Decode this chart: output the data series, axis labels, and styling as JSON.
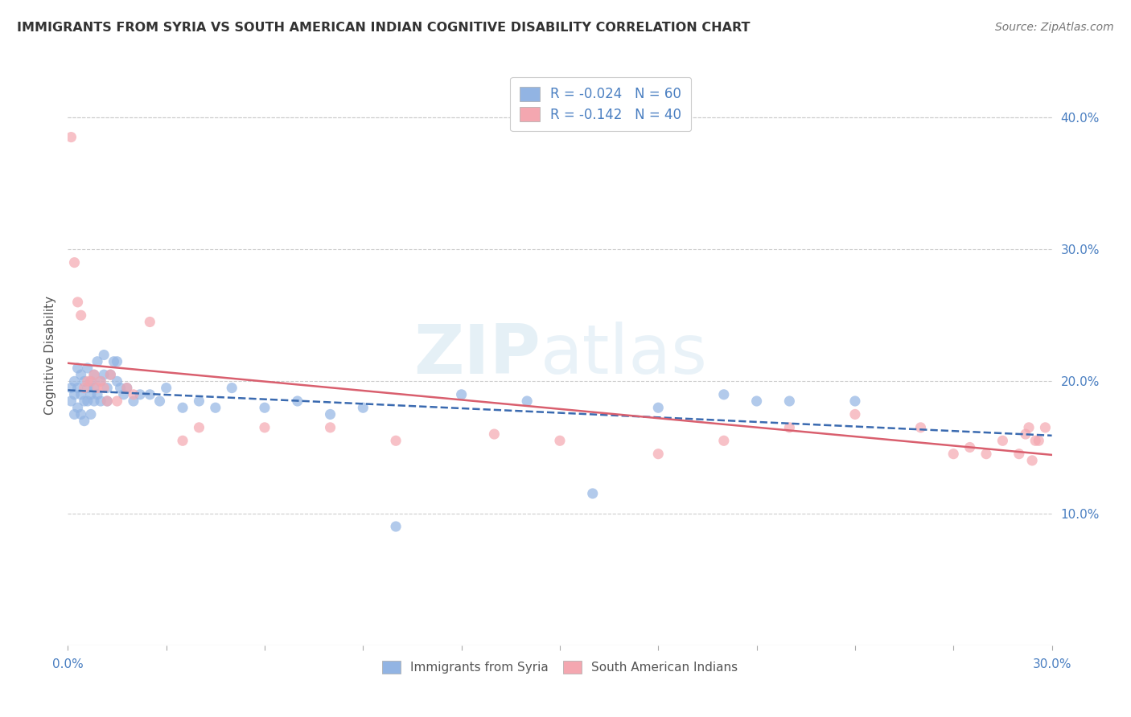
{
  "title": "IMMIGRANTS FROM SYRIA VS SOUTH AMERICAN INDIAN COGNITIVE DISABILITY CORRELATION CHART",
  "source": "Source: ZipAtlas.com",
  "ylabel": "Cognitive Disability",
  "series1_name": "Immigrants from Syria",
  "series2_name": "South American Indians",
  "series1_color": "#92b4e3",
  "series2_color": "#f4a7b0",
  "series1_line_color": "#3a6ab0",
  "series2_line_color": "#d95f6e",
  "R1": -0.024,
  "N1": 60,
  "R2": -0.142,
  "N2": 40,
  "xlim": [
    0.0,
    0.3
  ],
  "ylim": [
    0.0,
    0.44
  ],
  "ytick_vals": [
    0.1,
    0.2,
    0.3,
    0.4
  ],
  "ytick_labels_right": [
    "10.0%",
    "20.0%",
    "30.0%",
    "40.0%"
  ],
  "watermark_zip": "ZIP",
  "watermark_atlas": "atlas",
  "background_color": "#ffffff",
  "grid_color": "#cccccc",
  "series1_x": [
    0.001,
    0.001,
    0.002,
    0.002,
    0.002,
    0.003,
    0.003,
    0.003,
    0.004,
    0.004,
    0.004,
    0.005,
    0.005,
    0.005,
    0.006,
    0.006,
    0.006,
    0.007,
    0.007,
    0.007,
    0.008,
    0.008,
    0.008,
    0.009,
    0.009,
    0.01,
    0.01,
    0.011,
    0.011,
    0.012,
    0.012,
    0.013,
    0.014,
    0.015,
    0.015,
    0.016,
    0.017,
    0.018,
    0.02,
    0.022,
    0.025,
    0.028,
    0.03,
    0.035,
    0.04,
    0.045,
    0.05,
    0.06,
    0.07,
    0.08,
    0.09,
    0.1,
    0.12,
    0.14,
    0.16,
    0.18,
    0.2,
    0.21,
    0.22,
    0.24
  ],
  "series1_y": [
    0.195,
    0.185,
    0.2,
    0.19,
    0.175,
    0.21,
    0.195,
    0.18,
    0.205,
    0.19,
    0.175,
    0.2,
    0.185,
    0.17,
    0.195,
    0.21,
    0.185,
    0.2,
    0.19,
    0.175,
    0.195,
    0.185,
    0.205,
    0.215,
    0.19,
    0.2,
    0.185,
    0.205,
    0.22,
    0.195,
    0.185,
    0.205,
    0.215,
    0.2,
    0.215,
    0.195,
    0.19,
    0.195,
    0.185,
    0.19,
    0.19,
    0.185,
    0.195,
    0.18,
    0.185,
    0.18,
    0.195,
    0.18,
    0.185,
    0.175,
    0.18,
    0.09,
    0.19,
    0.185,
    0.115,
    0.18,
    0.19,
    0.185,
    0.185,
    0.185
  ],
  "series2_x": [
    0.001,
    0.002,
    0.003,
    0.004,
    0.005,
    0.006,
    0.007,
    0.008,
    0.009,
    0.01,
    0.011,
    0.012,
    0.013,
    0.015,
    0.018,
    0.02,
    0.025,
    0.035,
    0.04,
    0.06,
    0.08,
    0.1,
    0.13,
    0.15,
    0.18,
    0.2,
    0.22,
    0.24,
    0.26,
    0.27,
    0.275,
    0.28,
    0.285,
    0.29,
    0.292,
    0.293,
    0.294,
    0.295,
    0.296,
    0.298
  ],
  "series2_y": [
    0.385,
    0.29,
    0.26,
    0.25,
    0.195,
    0.2,
    0.2,
    0.205,
    0.195,
    0.2,
    0.195,
    0.185,
    0.205,
    0.185,
    0.195,
    0.19,
    0.245,
    0.155,
    0.165,
    0.165,
    0.165,
    0.155,
    0.16,
    0.155,
    0.145,
    0.155,
    0.165,
    0.175,
    0.165,
    0.145,
    0.15,
    0.145,
    0.155,
    0.145,
    0.16,
    0.165,
    0.14,
    0.155,
    0.155,
    0.165
  ]
}
